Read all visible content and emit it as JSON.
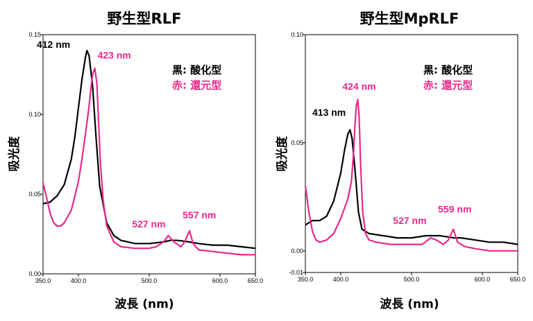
{
  "colors": {
    "oxidized": "#000000",
    "reduced": "#e8288a"
  },
  "chart_data": [
    {
      "type": "line",
      "title": "野生型RLF",
      "xlabel": "波長 (nm)",
      "ylabel": "吸光度",
      "xlim": [
        350,
        650
      ],
      "ylim": [
        0,
        0.15
      ],
      "xticks": [
        "350.0",
        "400.0",
        "500.0",
        "600.0",
        "650.0"
      ],
      "xtick_values": [
        350,
        400,
        500,
        600,
        650
      ],
      "yticks": [
        "0.00",
        "0.05",
        "0.10",
        "0.15"
      ],
      "ytick_values": [
        0,
        0.05,
        0.1,
        0.15
      ],
      "legend": {
        "position": "top-right",
        "lines": [
          "黒: 酸化型",
          "赤: 還元型"
        ]
      },
      "annotations": [
        {
          "text": "412 nm",
          "x": 412,
          "y": 0.14,
          "series": "oxidized"
        },
        {
          "text": "423 nm",
          "x": 423,
          "y": 0.129,
          "series": "reduced"
        },
        {
          "text": "527 nm",
          "x": 527,
          "y": 0.024,
          "series": "reduced"
        },
        {
          "text": "557 nm",
          "x": 557,
          "y": 0.027,
          "series": "reduced"
        }
      ],
      "series": [
        {
          "key": "oxidized",
          "x": [
            350,
            360,
            370,
            380,
            390,
            395,
            400,
            405,
            410,
            412,
            415,
            420,
            425,
            430,
            440,
            450,
            460,
            480,
            500,
            520,
            530,
            540,
            557,
            570,
            590,
            610,
            630,
            650
          ],
          "y": [
            0.044,
            0.045,
            0.049,
            0.056,
            0.072,
            0.086,
            0.104,
            0.122,
            0.136,
            0.14,
            0.137,
            0.118,
            0.085,
            0.055,
            0.032,
            0.024,
            0.021,
            0.019,
            0.019,
            0.02,
            0.021,
            0.021,
            0.02,
            0.019,
            0.018,
            0.018,
            0.017,
            0.016
          ]
        },
        {
          "key": "reduced",
          "x": [
            350,
            355,
            360,
            365,
            370,
            375,
            380,
            390,
            400,
            405,
            410,
            415,
            418,
            420,
            423,
            426,
            428,
            431,
            435,
            440,
            450,
            460,
            480,
            500,
            510,
            520,
            527,
            535,
            545,
            550,
            557,
            562,
            570,
            590,
            610,
            630,
            650
          ],
          "y": [
            0.057,
            0.048,
            0.038,
            0.032,
            0.03,
            0.03,
            0.032,
            0.04,
            0.058,
            0.072,
            0.088,
            0.105,
            0.118,
            0.125,
            0.129,
            0.12,
            0.1,
            0.07,
            0.046,
            0.03,
            0.02,
            0.017,
            0.016,
            0.016,
            0.017,
            0.02,
            0.024,
            0.02,
            0.017,
            0.02,
            0.027,
            0.019,
            0.015,
            0.014,
            0.013,
            0.012,
            0.012
          ]
        }
      ]
    },
    {
      "type": "line",
      "title": "野生型MpRLF",
      "xlabel": "波長 (nm)",
      "ylabel": "吸光度",
      "xlim": [
        350,
        650
      ],
      "ylim": [
        -0.01,
        0.1
      ],
      "xticks": [
        "350.0",
        "400.0",
        "500.0",
        "600.0",
        "650.0"
      ],
      "xtick_values": [
        350,
        400,
        500,
        600,
        650
      ],
      "yticks": [
        "-0.01",
        "0.00",
        "0.05",
        "0.10"
      ],
      "ytick_values": [
        -0.01,
        0,
        0.05,
        0.1
      ],
      "legend": {
        "position": "top-right",
        "lines": [
          "黒: 酸化型",
          "赤: 還元型"
        ]
      },
      "annotations": [
        {
          "text": "413 nm",
          "x": 413,
          "y": 0.056,
          "series": "oxidized"
        },
        {
          "text": "424 nm",
          "x": 424,
          "y": 0.07,
          "series": "reduced"
        },
        {
          "text": "527 nm",
          "x": 527,
          "y": 0.006,
          "series": "reduced"
        },
        {
          "text": "559 nm",
          "x": 559,
          "y": 0.01,
          "series": "reduced"
        }
      ],
      "series": [
        {
          "key": "oxidized",
          "x": [
            350,
            355,
            360,
            370,
            380,
            390,
            400,
            405,
            410,
            413,
            416,
            420,
            425,
            430,
            440,
            460,
            480,
            500,
            520,
            530,
            540,
            560,
            570,
            590,
            610,
            630,
            650
          ],
          "y": [
            0.012,
            0.013,
            0.014,
            0.014,
            0.016,
            0.023,
            0.036,
            0.046,
            0.054,
            0.056,
            0.052,
            0.038,
            0.018,
            0.01,
            0.008,
            0.007,
            0.006,
            0.006,
            0.007,
            0.007,
            0.007,
            0.006,
            0.006,
            0.005,
            0.004,
            0.004,
            0.003
          ]
        },
        {
          "key": "reduced",
          "x": [
            350,
            355,
            360,
            365,
            370,
            380,
            390,
            400,
            410,
            415,
            418,
            420,
            422,
            424,
            426,
            428,
            431,
            435,
            440,
            450,
            470,
            500,
            515,
            527,
            535,
            545,
            552,
            559,
            565,
            575,
            590,
            610,
            630,
            650
          ],
          "y": [
            0.03,
            0.018,
            0.009,
            0.005,
            0.004,
            0.005,
            0.008,
            0.015,
            0.024,
            0.032,
            0.045,
            0.058,
            0.067,
            0.07,
            0.062,
            0.04,
            0.018,
            0.008,
            0.005,
            0.004,
            0.003,
            0.003,
            0.003,
            0.006,
            0.005,
            0.003,
            0.005,
            0.01,
            0.004,
            0.002,
            0.001,
            0.0,
            0.0,
            0.0
          ]
        }
      ]
    }
  ]
}
